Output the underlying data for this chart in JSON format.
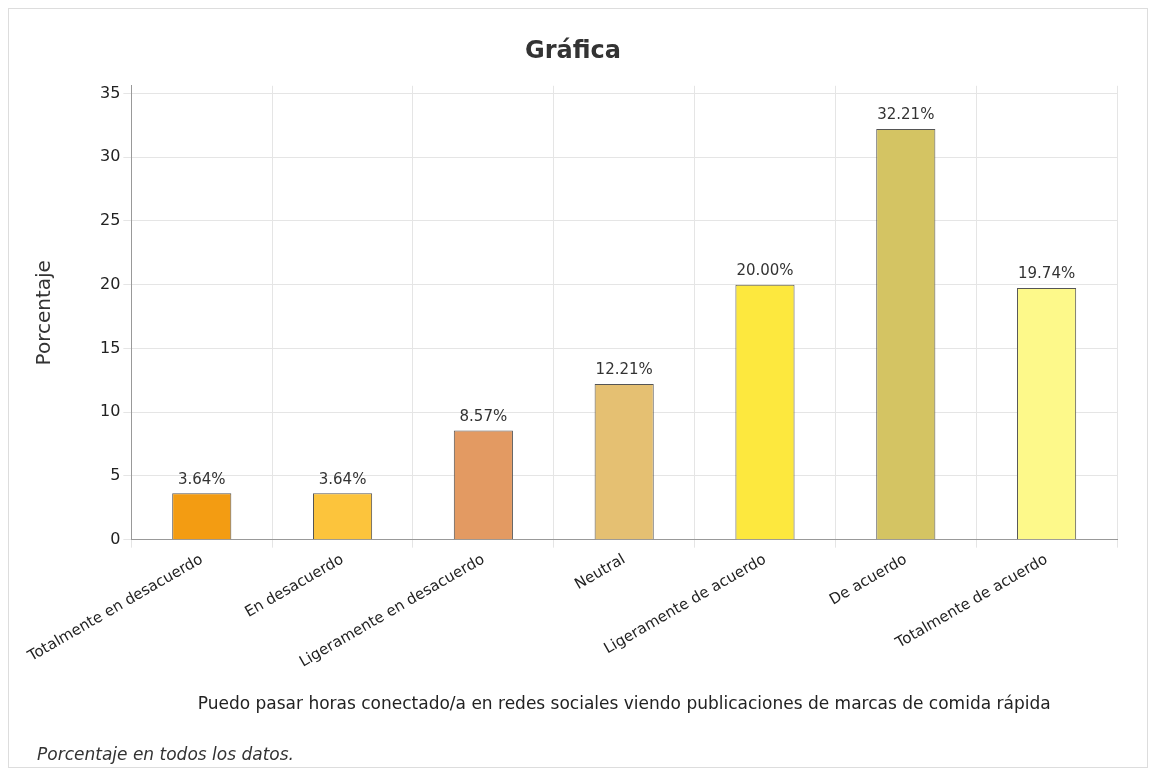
{
  "chart_data": {
    "type": "bar",
    "title": "Gráfica",
    "xlabel": "Puedo pasar horas conectado/a en redes sociales viendo publicaciones de marcas de comida rápida",
    "ylabel": "Porcentaje",
    "categories": [
      "Totalmente en desacuerdo",
      "En desacuerdo",
      "Ligeramente en desacuerdo",
      "Neutral",
      "Ligeramente de acuerdo",
      "De acuerdo",
      "Totalmente de acuerdo"
    ],
    "values": [
      3.64,
      3.64,
      8.57,
      12.21,
      20.0,
      32.21,
      19.74
    ],
    "value_labels": [
      "3.64%",
      "3.64%",
      "8.57%",
      "12.21%",
      "20.00%",
      "32.21%",
      "19.74%"
    ],
    "colors": [
      "#f39c12",
      "#fcc43c",
      "#e39a62",
      "#e5c072",
      "#fde83e",
      "#d4c463",
      "#fdf98a"
    ],
    "ylim": [
      0,
      35.6
    ],
    "yticks": [
      0,
      5,
      10,
      15,
      20,
      25,
      30,
      35
    ],
    "grid": true,
    "legend": false,
    "annotations": [
      "Porcentaje en todos los datos."
    ]
  }
}
